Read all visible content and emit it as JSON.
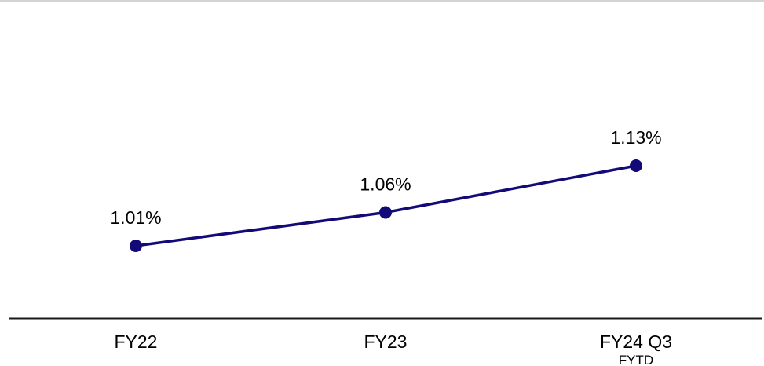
{
  "colors": {
    "series": "#120a78",
    "axis": "#1a1a1a",
    "text": "#000000",
    "top_rule": "#d4d4d4"
  },
  "chart_data": {
    "type": "line",
    "categories": [
      "FY22",
      "FY23",
      "FY24 Q3"
    ],
    "category_sublabels": [
      "",
      "",
      "FYTD"
    ],
    "series": [
      {
        "values": [
          1.01,
          1.06,
          1.13
        ],
        "data_labels": [
          "1.01%",
          "1.06%",
          "1.13%"
        ]
      }
    ],
    "title": "",
    "xlabel": "",
    "ylabel": "",
    "y_axis_visible": false,
    "grid": false,
    "legend": "none"
  }
}
